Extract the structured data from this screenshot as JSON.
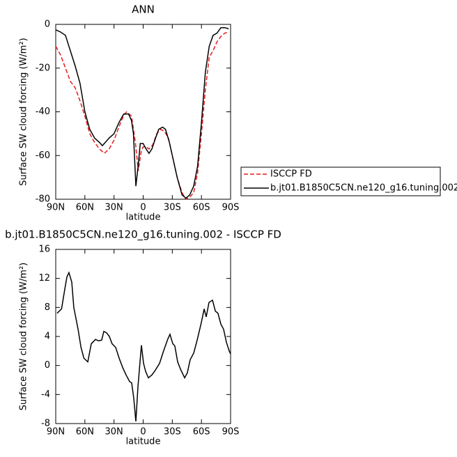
{
  "chart_data": [
    {
      "type": "line",
      "title": "ANN",
      "xlabel": "latitude",
      "ylabel": "Surface SW cloud forcing (W/m²)",
      "xlim": [
        90,
        -90
      ],
      "ylim": [
        -80,
        0
      ],
      "xticks": [
        {
          "value": 90,
          "label": "90N"
        },
        {
          "value": 60,
          "label": "60N"
        },
        {
          "value": 30,
          "label": "30N"
        },
        0,
        {
          "value": -30,
          "label": "30S"
        },
        {
          "value": -60,
          "label": "60S"
        },
        {
          "value": -90,
          "label": "90S"
        }
      ],
      "yticks": [
        0,
        -20,
        -40,
        -60,
        -80
      ],
      "series": [
        {
          "name": "ISCCP FD",
          "color": "#e41a1c",
          "dashed": true,
          "x": [
            90,
            85,
            80,
            75,
            70,
            65,
            60,
            55,
            50,
            45,
            40,
            35,
            30,
            25,
            20,
            17,
            12,
            8,
            5,
            2,
            0,
            -3,
            -6,
            -10,
            -14,
            -18,
            -22,
            -26,
            -30,
            -35,
            -40,
            -44,
            -48,
            -52,
            -56,
            -60,
            -64,
            -68,
            -72,
            -76,
            -80,
            -84,
            -88
          ],
          "values": [
            -10,
            -14,
            -20,
            -26,
            -29,
            -35,
            -42,
            -50,
            -54,
            -57,
            -59,
            -57,
            -53,
            -47,
            -41.5,
            -40,
            -42,
            -54,
            -67,
            -58,
            -56,
            -56,
            -57,
            -55,
            -50,
            -48,
            -49,
            -52,
            -60,
            -70,
            -77,
            -80,
            -79,
            -77,
            -68,
            -50,
            -30,
            -15,
            -12,
            -8,
            -5.5,
            -4,
            -3.5
          ]
        },
        {
          "name": "b.jt01.B1850C5CN.ne120_g16.tuning.002",
          "color": "#000000",
          "dashed": false,
          "x": [
            90,
            85,
            80,
            75,
            70,
            65,
            60,
            55,
            50,
            45,
            42,
            35,
            30,
            25,
            20,
            15,
            12,
            10,
            7.5,
            5,
            3,
            0,
            -3,
            -6,
            -9,
            -12,
            -16,
            -20,
            -23,
            -27,
            -30,
            -35,
            -40,
            -44,
            -48,
            -52,
            -56,
            -60,
            -64,
            -68,
            -72,
            -76,
            -80,
            -84,
            -88
          ],
          "values": [
            -2.5,
            -3.5,
            -5,
            -12,
            -19,
            -27,
            -40,
            -48,
            -52,
            -54,
            -55.5,
            -52,
            -50,
            -45,
            -41,
            -41,
            -44,
            -50,
            -74,
            -64,
            -54.5,
            -54.5,
            -57,
            -59,
            -57,
            -53,
            -48,
            -47,
            -48,
            -54,
            -60,
            -70,
            -78,
            -79.5,
            -78,
            -74,
            -65,
            -45,
            -22,
            -10,
            -5,
            -4,
            -1.5,
            -1.5,
            -2
          ]
        }
      ]
    },
    {
      "type": "line",
      "title": "b.jt01.B1850C5CN.ne120_g16.tuning.002 - ISCCP FD",
      "xlabel": "latitude",
      "ylabel": "Surface SW cloud forcing (W/m²)",
      "xlim": [
        90,
        -90
      ],
      "ylim": [
        -8,
        16
      ],
      "xticks": [
        {
          "value": 90,
          "label": "90N"
        },
        {
          "value": 60,
          "label": "60N"
        },
        {
          "value": 30,
          "label": "30N"
        },
        0,
        {
          "value": -30,
          "label": "30S"
        },
        {
          "value": -60,
          "label": "60S"
        },
        {
          "value": -90,
          "label": "90S"
        }
      ],
      "yticks": [
        16,
        12,
        8,
        4,
        0,
        -4,
        -8
      ],
      "series": [
        {
          "color": "#000000",
          "dashed": false,
          "x": [
            88.6,
            84,
            80.7,
            78.5,
            76.4,
            73.5,
            71.4,
            67,
            64,
            61,
            57,
            53.4,
            49,
            46,
            42.7,
            40.5,
            37.6,
            34.8,
            32,
            28.3,
            24.7,
            21,
            17.6,
            14,
            11.8,
            9.7,
            7.5,
            5.4,
            1.8,
            -0.4,
            -2.5,
            -5.4,
            -9,
            -11.8,
            -16.9,
            -21,
            -25.5,
            -27.6,
            -30.5,
            -32.6,
            -35.5,
            -38.4,
            -42.7,
            -45.5,
            -48.4,
            -52,
            -55.6,
            -60,
            -62.8,
            -64.9,
            -67.8,
            -71.4,
            -74.3,
            -77,
            -80,
            -82.8,
            -85.7,
            -88.6,
            -90
          ],
          "values": [
            7.2,
            7.8,
            10.5,
            12.2,
            12.8,
            11.5,
            8,
            5,
            2.5,
            1,
            0.5,
            3,
            3.6,
            3.4,
            3.5,
            4.7,
            4.5,
            4,
            3,
            2.5,
            1,
            -0.3,
            -1.3,
            -2.2,
            -2.4,
            -4.5,
            -7.7,
            -3,
            2.8,
            0.3,
            -0.8,
            -1.7,
            -1.3,
            -0.8,
            0.3,
            2,
            3.7,
            4.3,
            3,
            2.7,
            0.5,
            -0.5,
            -1.7,
            -1,
            0.8,
            1.7,
            3.5,
            6,
            7.8,
            6.7,
            8.7,
            9,
            7.5,
            7.2,
            5.7,
            5,
            3.2,
            2,
            1.6
          ]
        }
      ]
    }
  ]
}
